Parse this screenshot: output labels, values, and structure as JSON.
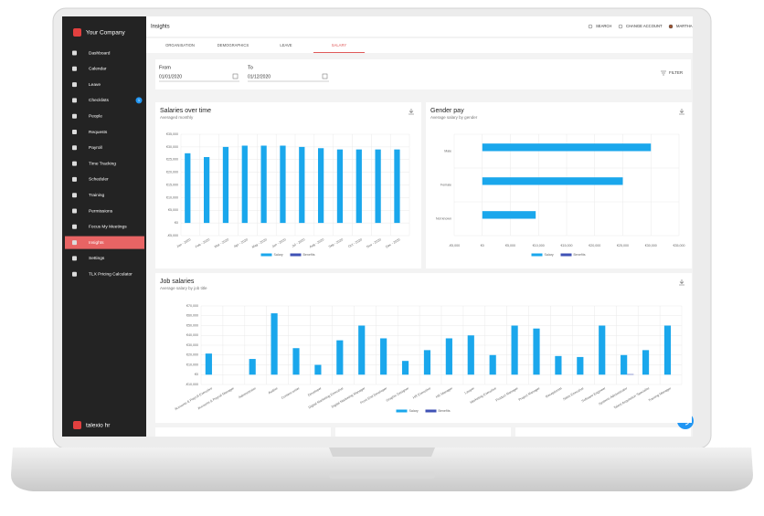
{
  "app": {
    "company": "Your Company",
    "brand": "talexio hr",
    "menu": [
      {
        "label": "Dashboard"
      },
      {
        "label": "Calendar"
      },
      {
        "label": "Leave"
      },
      {
        "label": "Checklists",
        "badge": "1"
      },
      {
        "label": "People"
      },
      {
        "label": "Requests"
      },
      {
        "label": "Payroll"
      },
      {
        "label": "Time Tracking"
      },
      {
        "label": "Scheduler"
      },
      {
        "label": "Training"
      },
      {
        "label": "Permissions"
      },
      {
        "label": "Focus My Meetings"
      },
      {
        "label": "Insights",
        "active": true
      },
      {
        "label": "Settings"
      },
      {
        "label": "TLX Pricing Calculator"
      }
    ]
  },
  "header": {
    "title": "Insights",
    "actions": [
      "SEARCH",
      "CHANGE ACCOUNT",
      "MARTHA"
    ]
  },
  "tabs": [
    {
      "label": "ORGANISATION"
    },
    {
      "label": "DEMOGRAPHICS"
    },
    {
      "label": "LEAVE"
    },
    {
      "label": "SALARY",
      "active": true
    }
  ],
  "filter": {
    "from_label": "From",
    "from": "01/01/2020",
    "to_label": "To",
    "to": "01/12/2020",
    "button": "FILTER"
  },
  "chart_data": [
    {
      "type": "bar",
      "title": "Salaries over time",
      "subtitle": "Averaged monthly",
      "categories": [
        "Jan - 2020",
        "Feb - 2020",
        "Mar - 2020",
        "Apr - 2020",
        "May - 2020",
        "Jun - 2020",
        "Jul - 2020",
        "Aug - 2020",
        "Sep - 2020",
        "Oct - 2020",
        "Nov - 2020",
        "Dec - 2020"
      ],
      "series": [
        {
          "name": "Salary",
          "color": "#1aa7ec",
          "values": [
            27500,
            26000,
            30000,
            30500,
            30500,
            30500,
            30000,
            29500,
            29000,
            29000,
            29000,
            29000
          ]
        },
        {
          "name": "Benefits",
          "color": "#3f51b5",
          "values": [
            0,
            0,
            0,
            0,
            0,
            0,
            0,
            0,
            0,
            0,
            0,
            0
          ]
        }
      ],
      "ylim": [
        -5000,
        35000
      ],
      "yticks": [
        {
          "value": -5000,
          "label": "-€5,000"
        },
        {
          "value": 0,
          "label": "€0"
        },
        {
          "value": 5000,
          "label": "€5,000"
        },
        {
          "value": 10000,
          "label": "€10,000"
        },
        {
          "value": 15000,
          "label": "€15,000"
        },
        {
          "value": 20000,
          "label": "€20,000"
        },
        {
          "value": 25000,
          "label": "€25,000"
        },
        {
          "value": 30000,
          "label": "€30,000"
        },
        {
          "value": 35000,
          "label": "€35,000"
        }
      ],
      "grid": true
    },
    {
      "type": "barh",
      "title": "Gender pay",
      "subtitle": "Average salary by gender",
      "categories": [
        "Male",
        "Female",
        "Not known"
      ],
      "series": [
        {
          "name": "Salary",
          "color": "#1aa7ec",
          "values": [
            30000,
            25000,
            9500
          ]
        },
        {
          "name": "Benefits",
          "color": "#3f51b5",
          "values": [
            0,
            0,
            0
          ]
        }
      ],
      "xlim": [
        -5000,
        35000
      ],
      "xticks": [
        {
          "value": -5000,
          "label": "-€5,000"
        },
        {
          "value": 0,
          "label": "€0"
        },
        {
          "value": 5000,
          "label": "€5,000"
        },
        {
          "value": 10000,
          "label": "€10,000"
        },
        {
          "value": 15000,
          "label": "€15,000"
        },
        {
          "value": 20000,
          "label": "€20,000"
        },
        {
          "value": 25000,
          "label": "€25,000"
        },
        {
          "value": 30000,
          "label": "€30,000"
        },
        {
          "value": 35000,
          "label": "€35,000"
        }
      ],
      "grid": true
    },
    {
      "type": "bar",
      "title": "Job salaries",
      "subtitle": "Average salary by job title",
      "categories": [
        "Accounts & Payroll Executive",
        "Accounts & Payroll Manager",
        "Administrator",
        "Auditor",
        "Content writer",
        "Developer",
        "Digital Marketing Executive",
        "Digital Marketing Manager",
        "Front End Developer",
        "Graphic Designer",
        "HR Executive",
        "HR Manager",
        "Lawyer",
        "Marketing Executive",
        "Product Manager",
        "Project Manager",
        "Receptionist",
        "Sales Executive",
        "Software Engineer",
        "Systems Administrator",
        "Talent Acquisition Specialist",
        "Training Manager"
      ],
      "series": [
        {
          "name": "Salary",
          "color": "#1aa7ec",
          "values": [
            21500,
            0,
            16000,
            62500,
            27000,
            10000,
            35000,
            50000,
            37000,
            14000,
            25000,
            37000,
            40000,
            20000,
            50000,
            47000,
            19000,
            18000,
            50000,
            20000,
            25000,
            50000
          ]
        },
        {
          "name": "Benefits",
          "color": "#3f51b5",
          "values": [
            0,
            0,
            0,
            0,
            0,
            0,
            0,
            0,
            0,
            0,
            0,
            0,
            0,
            0,
            0,
            0,
            0,
            0,
            0,
            500,
            0,
            0
          ]
        }
      ],
      "ylim": [
        -10000,
        70000
      ],
      "yticks": [
        {
          "value": -10000,
          "label": "-€10,000"
        },
        {
          "value": 0,
          "label": "€0"
        },
        {
          "value": 10000,
          "label": "€10,000"
        },
        {
          "value": 20000,
          "label": "€20,000"
        },
        {
          "value": 30000,
          "label": "€30,000"
        },
        {
          "value": 40000,
          "label": "€40,000"
        },
        {
          "value": 50000,
          "label": "€50,000"
        },
        {
          "value": 60000,
          "label": "€60,000"
        },
        {
          "value": 70000,
          "label": "€70,000"
        }
      ],
      "grid": true
    }
  ]
}
